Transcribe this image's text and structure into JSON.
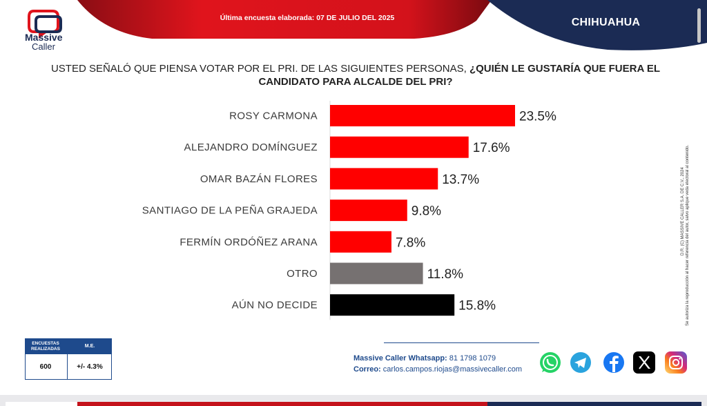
{
  "header": {
    "brand_line1": "Massive",
    "brand_line2": "Caller",
    "survey_date_label": "Última encuesta elaborada: ",
    "survey_date": "07 DE JULIO DEL 2025",
    "state": "CHIHUAHUA",
    "colors": {
      "red": "#e0141c",
      "navy": "#1b2b54"
    }
  },
  "question": {
    "part1": "USTED SEÑALÓ QUE PIENSA VOTAR POR EL PRI. DE LAS SIGUIENTES PERSONAS, ",
    "part2": "¿QUIÉN LE GUSTARÍA QUE FUERA EL CANDIDATO PARA ALCALDE DEL PRI?"
  },
  "chart_data": {
    "type": "bar",
    "orientation": "horizontal",
    "title": "",
    "xlabel": "",
    "ylabel": "",
    "grid": false,
    "xlim": [
      0,
      23.5
    ],
    "categories": [
      "ROSY CARMONA",
      "ALEJANDRO DOMÍNGUEZ",
      "OMAR BAZÁN FLORES",
      "SANTIAGO DE LA PEÑA GRAJEDA",
      "FERMÍN ORDÓÑEZ ARANA",
      "OTRO",
      "AÚN NO DECIDE"
    ],
    "values": [
      23.5,
      17.6,
      13.7,
      9.8,
      7.8,
      11.8,
      15.8
    ],
    "value_labels": [
      "23.5%",
      "17.6%",
      "13.7%",
      "9.8%",
      "7.8%",
      "11.8%",
      "15.8%"
    ],
    "colors": [
      "#ff0000",
      "#ff0000",
      "#ff0000",
      "#ff0000",
      "#ff0000",
      "#767171",
      "#000000"
    ]
  },
  "side_credit": {
    "line1": "D.R. (C) MASSIVE CALLER S.A. DE C.V., 2024",
    "line2": "Se autoriza la reproducción al hacer referencia del autor, salvo aplique veda electoral al contenido."
  },
  "stats": {
    "col1_header_line1": "ENCUESTAS",
    "col1_header_line2": "REALIZADAS",
    "col2_header": "M.E.",
    "col1_value": "600",
    "col2_value": "+/- 4.3%"
  },
  "contact": {
    "whatsapp_label": "Massive Caller Whatsapp:",
    "whatsapp_number": " 81 1798 1079",
    "email_label": "Correo:",
    "email": " carlos.campos.riojas@massivecaller.com"
  },
  "social_icons": [
    "whatsapp-icon",
    "telegram-icon",
    "facebook-icon",
    "x-icon",
    "instagram-icon"
  ]
}
